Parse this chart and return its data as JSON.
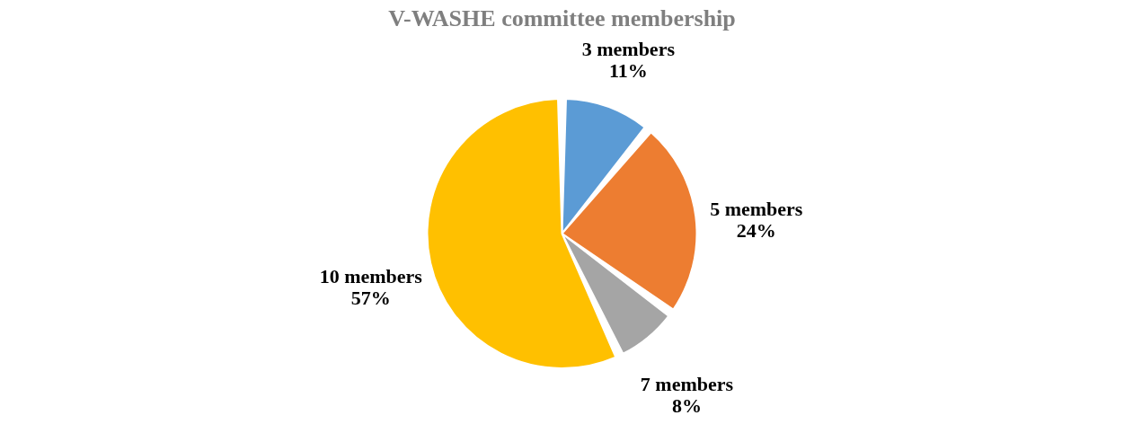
{
  "chart_data": {
    "type": "pie",
    "title": "V-WASHE committee membership",
    "categories": [
      "3 members",
      "5 members",
      "7 members",
      "10 members"
    ],
    "values": [
      11,
      24,
      8,
      57
    ],
    "value_labels": [
      "11%",
      "24%",
      "8%",
      "57%"
    ],
    "colors": [
      "#5b9bd5",
      "#ed7d31",
      "#a5a5a5",
      "#ffc000"
    ],
    "legend": false
  }
}
